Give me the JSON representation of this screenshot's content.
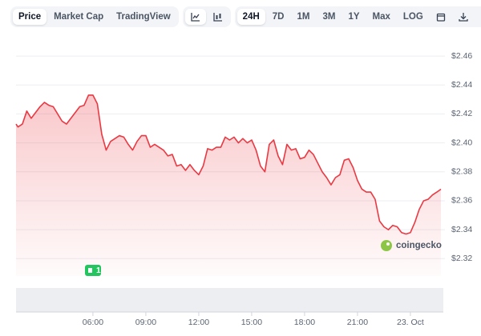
{
  "toolbar": {
    "views": [
      "Price",
      "Market Cap",
      "TradingView"
    ],
    "ranges": [
      "24H",
      "7D",
      "1M",
      "3M",
      "1Y",
      "Max",
      "LOG"
    ]
  },
  "chart_data": {
    "type": "area",
    "color": "#ea3943",
    "x": [
      1.64,
      1.75,
      2.0,
      2.25,
      2.5,
      2.75,
      3.0,
      3.25,
      3.5,
      3.75,
      4.0,
      4.25,
      4.5,
      4.75,
      5.0,
      5.25,
      5.5,
      5.75,
      6.0,
      6.25,
      6.5,
      6.75,
      7.0,
      7.25,
      7.5,
      7.75,
      8.0,
      8.25,
      8.5,
      8.75,
      9.0,
      9.25,
      9.5,
      9.75,
      10.0,
      10.25,
      10.5,
      10.75,
      11.0,
      11.25,
      11.5,
      11.75,
      12.0,
      12.25,
      12.5,
      12.75,
      13.0,
      13.25,
      13.5,
      13.75,
      14.0,
      14.25,
      14.5,
      14.75,
      15.0,
      15.25,
      15.5,
      15.75,
      16.0,
      16.25,
      16.5,
      16.75,
      17.0,
      17.25,
      17.5,
      17.75,
      18.0,
      18.25,
      18.5,
      18.75,
      19.0,
      19.25,
      19.5,
      19.75,
      20.0,
      20.25,
      20.5,
      20.75,
      21.0,
      21.25,
      21.5,
      21.75,
      22.0,
      22.25,
      22.5,
      22.75,
      23.0,
      23.25,
      23.5,
      23.75,
      24.0,
      24.25,
      24.5,
      24.75,
      25.0,
      25.25,
      25.5,
      25.73
    ],
    "values": [
      2.413,
      2.411,
      2.413,
      2.422,
      2.417,
      2.421,
      2.425,
      2.428,
      2.426,
      2.425,
      2.42,
      2.415,
      2.413,
      2.417,
      2.421,
      2.425,
      2.426,
      2.433,
      2.433,
      2.427,
      2.406,
      2.395,
      2.401,
      2.403,
      2.405,
      2.404,
      2.399,
      2.395,
      2.401,
      2.405,
      2.405,
      2.397,
      2.399,
      2.397,
      2.395,
      2.391,
      2.392,
      2.384,
      2.385,
      2.381,
      2.385,
      2.381,
      2.378,
      2.384,
      2.396,
      2.395,
      2.397,
      2.397,
      2.404,
      2.402,
      2.404,
      2.4,
      2.403,
      2.4,
      2.402,
      2.395,
      2.384,
      2.38,
      2.399,
      2.402,
      2.391,
      2.385,
      2.399,
      2.395,
      2.396,
      2.389,
      2.39,
      2.395,
      2.392,
      2.386,
      2.38,
      2.376,
      2.371,
      2.376,
      2.378,
      2.388,
      2.389,
      2.383,
      2.374,
      2.368,
      2.366,
      2.366,
      2.361,
      2.346,
      2.342,
      2.34,
      2.343,
      2.342,
      2.338,
      2.337,
      2.338,
      2.345,
      2.354,
      2.36,
      2.361,
      2.364,
      2.366,
      2.368
    ],
    "xlim": [
      1.64,
      25.73
    ],
    "xticks": [
      {
        "value": 6,
        "label": "06:00"
      },
      {
        "value": 9,
        "label": "09:00"
      },
      {
        "value": 12,
        "label": "12:00"
      },
      {
        "value": 15,
        "label": "15:00"
      },
      {
        "value": 18,
        "label": "18:00"
      },
      {
        "value": 21,
        "label": "21:00"
      },
      {
        "value": 24,
        "label": "23. Oct"
      }
    ],
    "ylim": [
      2.308,
      2.47
    ],
    "yticks": [
      {
        "value": 2.46,
        "label": "$2.46"
      },
      {
        "value": 2.44,
        "label": "$2.44"
      },
      {
        "value": 2.42,
        "label": "$2.42"
      },
      {
        "value": 2.4,
        "label": "$2.40"
      },
      {
        "value": 2.38,
        "label": "$2.38"
      },
      {
        "value": 2.36,
        "label": "$2.36"
      },
      {
        "value": 2.34,
        "label": "$2.34"
      },
      {
        "value": 2.32,
        "label": "$2.32"
      }
    ],
    "grid": true,
    "annotation": "1",
    "watermark": "coingecko"
  }
}
